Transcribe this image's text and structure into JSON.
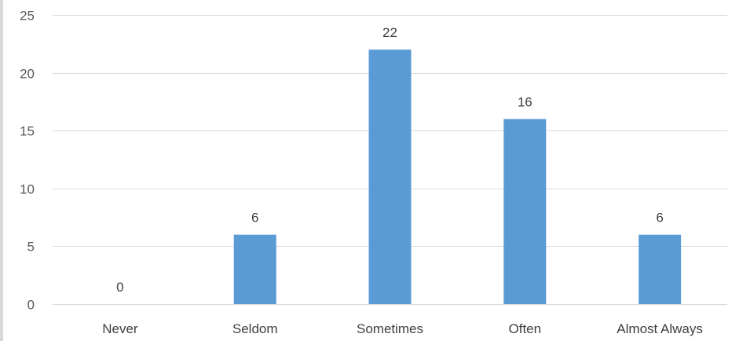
{
  "chart_data": {
    "type": "bar",
    "categories": [
      "Never",
      "Seldom",
      "Sometimes",
      "Often",
      "Almost Always"
    ],
    "values": [
      0,
      6,
      22,
      16,
      6
    ],
    "title": "",
    "xlabel": "",
    "ylabel": "",
    "ylim": [
      0,
      25
    ],
    "yticks": [
      0,
      5,
      10,
      15,
      20,
      25
    ],
    "grid": true,
    "data_labels": true,
    "bar_color": "#5b9bd5"
  }
}
